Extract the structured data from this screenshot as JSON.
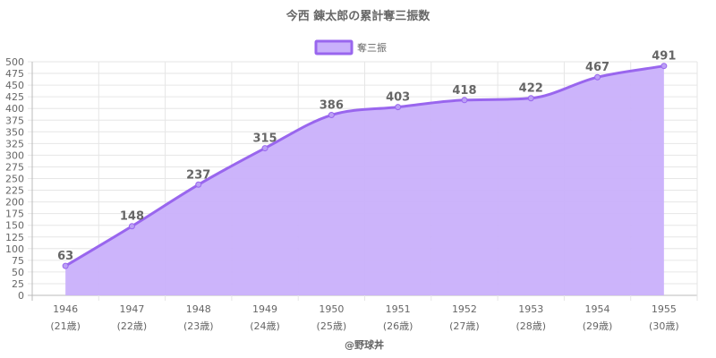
{
  "chart_data": {
    "type": "area",
    "title": "今西 錬太郎の累計奪三振数",
    "legend": {
      "position": "top",
      "entries": [
        "奪三振"
      ]
    },
    "x": [
      "1946",
      "1947",
      "1948",
      "1949",
      "1950",
      "1951",
      "1952",
      "1953",
      "1954",
      "1955"
    ],
    "x_sub": [
      "(21歳)",
      "(22歳)",
      "(23歳)",
      "(24歳)",
      "(25歳)",
      "(26歳)",
      "(27歳)",
      "(28歳)",
      "(29歳)",
      "(30歳)"
    ],
    "series": [
      {
        "name": "奪三振",
        "values": [
          63,
          148,
          237,
          315,
          386,
          403,
          418,
          422,
          467,
          491
        ]
      }
    ],
    "ylim": [
      0,
      500
    ],
    "y_step": 25,
    "grid": true,
    "xlabel": "",
    "ylabel": "",
    "colors": {
      "line": "#9966ee",
      "fill": "#c9b0fb",
      "point": "#bba0f5"
    }
  },
  "credit": "@野球丼"
}
